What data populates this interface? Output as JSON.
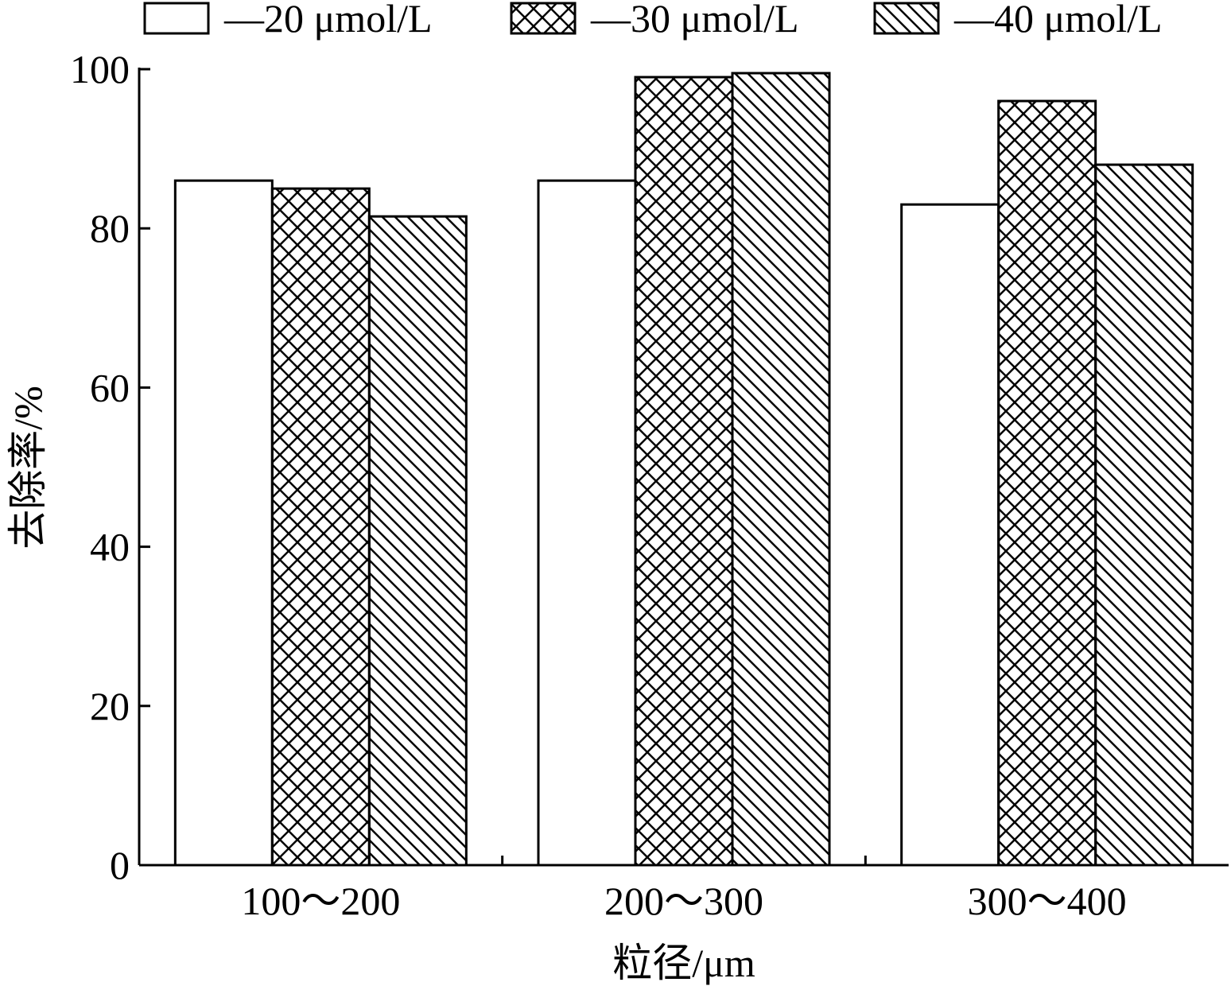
{
  "chart_data": {
    "type": "bar",
    "title": "",
    "xlabel": "粒径/μm",
    "ylabel": "去除率/%",
    "categories": [
      "100～200",
      "200～300",
      "300～400"
    ],
    "series": [
      {
        "name": "—20 μmol/L",
        "values": [
          86,
          86,
          83
        ],
        "pattern": "none"
      },
      {
        "name": "—30 μmol/L",
        "values": [
          85,
          99,
          96
        ],
        "pattern": "crosshatch"
      },
      {
        "name": "—40 μmol/L",
        "values": [
          81.5,
          99.5,
          88
        ],
        "pattern": "diagonal"
      }
    ],
    "ylim": [
      0,
      100
    ],
    "yticks": [
      "0",
      "20",
      "40",
      "60",
      "80",
      "100"
    ],
    "legend_position": "top",
    "grid": false,
    "colors": {
      "bar_fill": "#ffffff",
      "stroke": "#000000"
    }
  }
}
